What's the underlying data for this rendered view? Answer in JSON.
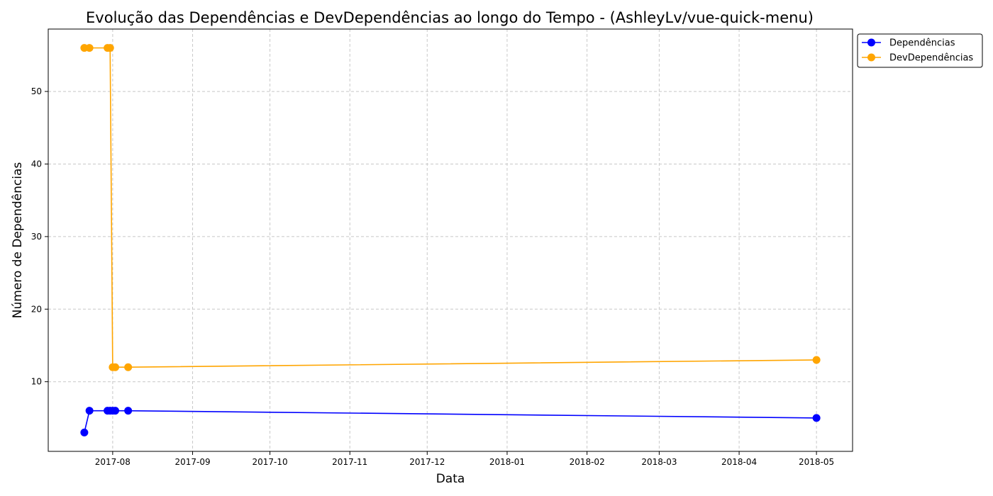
{
  "chart_data": {
    "type": "line",
    "title": "Evolução das Dependências e DevDependências ao longo do Tempo - (AshleyLv/vue-quick-menu)",
    "xlabel": "Data",
    "ylabel": "Número de Dependências",
    "xlim": [
      "2017-07-07",
      "2018-05-15"
    ],
    "ylim": [
      0.4,
      58.6
    ],
    "x_ticks": [
      {
        "date": "2017-08-01",
        "label": "2017-08"
      },
      {
        "date": "2017-09-01",
        "label": "2017-09"
      },
      {
        "date": "2017-10-01",
        "label": "2017-10"
      },
      {
        "date": "2017-11-01",
        "label": "2017-11"
      },
      {
        "date": "2017-12-01",
        "label": "2017-12"
      },
      {
        "date": "2018-01-01",
        "label": "2018-01"
      },
      {
        "date": "2018-02-01",
        "label": "2018-02"
      },
      {
        "date": "2018-03-01",
        "label": "2018-03"
      },
      {
        "date": "2018-04-01",
        "label": "2018-04"
      },
      {
        "date": "2018-05-01",
        "label": "2018-05"
      }
    ],
    "y_ticks": [
      10,
      20,
      30,
      40,
      50
    ],
    "grid": true,
    "legend_position": "outside-top-right",
    "series": [
      {
        "name": "Dependências",
        "color": "#0000ff",
        "marker": "circle",
        "points": [
          {
            "x": "2017-07-21",
            "y": 3
          },
          {
            "x": "2017-07-23",
            "y": 6
          },
          {
            "x": "2017-07-30",
            "y": 6
          },
          {
            "x": "2017-07-31",
            "y": 6
          },
          {
            "x": "2017-08-01",
            "y": 6
          },
          {
            "x": "2017-08-02",
            "y": 6
          },
          {
            "x": "2017-08-07",
            "y": 6
          },
          {
            "x": "2018-05-01",
            "y": 5
          }
        ]
      },
      {
        "name": "DevDependências",
        "color": "#ffa500",
        "marker": "circle",
        "points": [
          {
            "x": "2017-07-21",
            "y": 56
          },
          {
            "x": "2017-07-23",
            "y": 56
          },
          {
            "x": "2017-07-30",
            "y": 56
          },
          {
            "x": "2017-07-31",
            "y": 56
          },
          {
            "x": "2017-08-01",
            "y": 12
          },
          {
            "x": "2017-08-02",
            "y": 12
          },
          {
            "x": "2017-08-07",
            "y": 12
          },
          {
            "x": "2018-05-01",
            "y": 13
          }
        ]
      }
    ]
  }
}
